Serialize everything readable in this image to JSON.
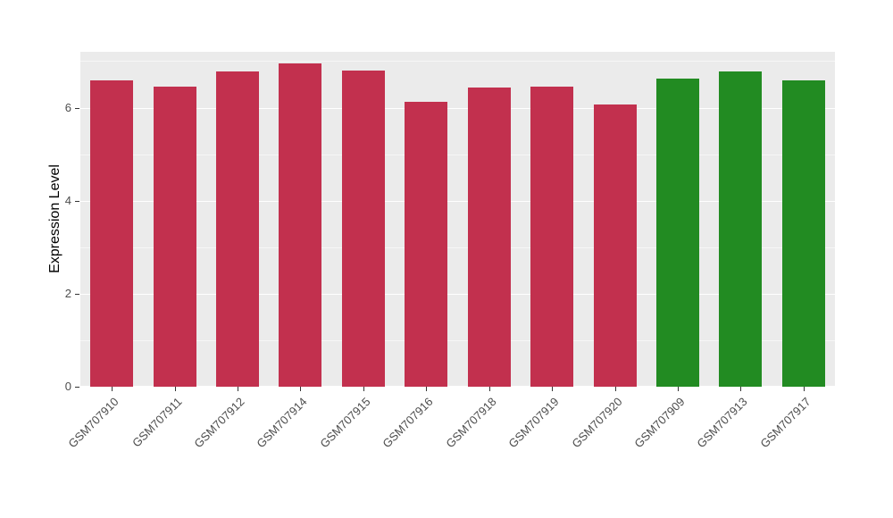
{
  "chart_data": {
    "type": "bar",
    "title": "",
    "xlabel": "",
    "ylabel": "Expression Level",
    "categories": [
      "GSM707910",
      "GSM707911",
      "GSM707912",
      "GSM707914",
      "GSM707915",
      "GSM707916",
      "GSM707918",
      "GSM707919",
      "GSM707920",
      "GSM707909",
      "GSM707913",
      "GSM707917"
    ],
    "values": [
      6.58,
      6.45,
      6.77,
      6.95,
      6.8,
      6.13,
      6.43,
      6.45,
      6.06,
      6.62,
      6.77,
      6.58
    ],
    "groups": [
      "groupA",
      "groupA",
      "groupA",
      "groupA",
      "groupA",
      "groupA",
      "groupA",
      "groupA",
      "groupA",
      "groupB",
      "groupB",
      "groupB"
    ],
    "colors": {
      "groupA": "#c2304e",
      "groupB": "#228b22"
    },
    "yticks": [
      0,
      2,
      4,
      6
    ],
    "ylim": [
      0,
      7.2
    ],
    "panel_background": "#ebebeb",
    "grid": true,
    "legend": "none"
  }
}
